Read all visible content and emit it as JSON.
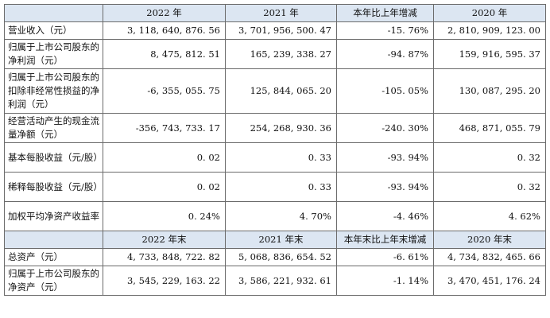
{
  "header1": {
    "blank": "",
    "cols": [
      "2022 年",
      "2021 年",
      "本年比上年增减",
      "2020 年"
    ]
  },
  "rows1": [
    {
      "label": "营业收入（元）",
      "values": [
        "3, 118, 640, 876. 56",
        "3, 701, 956, 500. 47",
        "-15. 76%",
        "2, 810, 909, 123. 00"
      ]
    },
    {
      "label": "归属于上市公司股东的净利润（元）",
      "values": [
        "8, 475, 812. 51",
        "165, 239, 338. 27",
        "-94. 87%",
        "159, 916, 595. 37"
      ]
    },
    {
      "label": "归属于上市公司股东的扣除非经常性损益的净利润（元）",
      "values": [
        "-6, 355, 055. 75",
        "125, 844, 065. 20",
        "-105. 05%",
        "130, 087, 295. 20"
      ]
    },
    {
      "label": "经营活动产生的现金流量净额（元）",
      "values": [
        "-356, 743, 733. 17",
        "254, 268, 930. 36",
        "-240. 30%",
        "468, 871, 055. 79"
      ]
    },
    {
      "label": "基本每股收益（元/股）",
      "values": [
        "0. 02",
        "0. 33",
        "-93. 94%",
        "0. 32"
      ]
    },
    {
      "label": "稀释每股收益（元/股）",
      "values": [
        "0. 02",
        "0. 33",
        "-93. 94%",
        "0. 32"
      ]
    },
    {
      "label": "加权平均净资产收益率",
      "values": [
        "0. 24%",
        "4. 70%",
        "-4. 46%",
        "4. 62%"
      ]
    }
  ],
  "header2": {
    "blank": "",
    "cols": [
      "2022 年末",
      "2021 年末",
      "本年末比上年末增减",
      "2020 年末"
    ]
  },
  "rows2": [
    {
      "label": "总资产（元）",
      "values": [
        "4, 733, 848, 722. 82",
        "5, 068, 836, 654. 52",
        "-6. 61%",
        "4, 734, 832, 465. 66"
      ]
    },
    {
      "label": "归属于上市公司股东的净资产（元）",
      "values": [
        "3, 545, 229, 163. 22",
        "3, 586, 221, 932. 61",
        "-1. 14%",
        "3, 470, 451, 176. 24"
      ]
    }
  ]
}
